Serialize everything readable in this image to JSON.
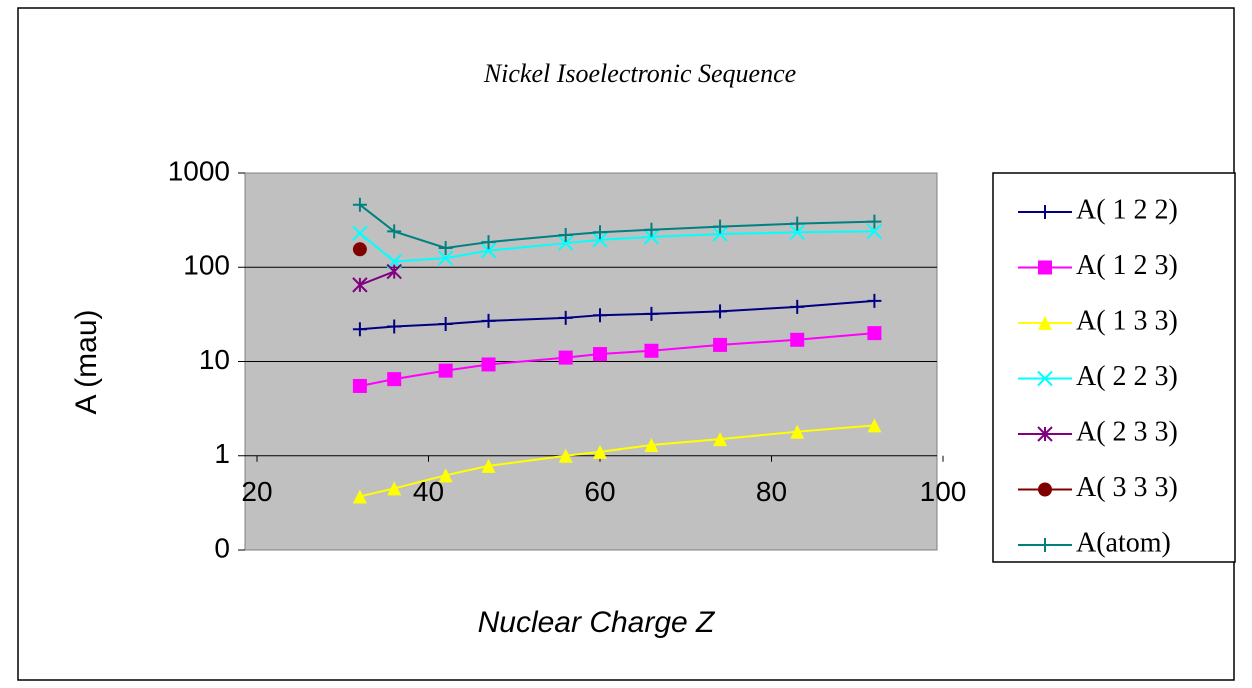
{
  "chart_data": {
    "type": "line",
    "title": "Nickel Isoelectronic Sequence",
    "x_label": "Nuclear Charge Z",
    "y_label": "A (mau)",
    "x": [
      32,
      36,
      42,
      47,
      56,
      60,
      66,
      74,
      83,
      92
    ],
    "series": [
      {
        "name": "A( 1 2 2)",
        "color": "#000080",
        "marker": "plus",
        "values": [
          22,
          23.5,
          25,
          27,
          29,
          31,
          32,
          34,
          38,
          44
        ]
      },
      {
        "name": "A( 1 2 3)",
        "color": "#ff00ff",
        "marker": "square",
        "values": [
          5.5,
          6.5,
          8,
          9.3,
          11,
          12,
          13,
          15,
          17,
          20
        ]
      },
      {
        "name": "A( 1 3 3)",
        "color": "#ffff00",
        "marker": "triangle",
        "values": [
          0.37,
          0.45,
          0.62,
          0.78,
          1.0,
          1.1,
          1.3,
          1.5,
          1.8,
          2.1
        ]
      },
      {
        "name": "A( 2 2 3)",
        "color": "#00ffff",
        "marker": "x",
        "values": [
          230,
          115,
          125,
          150,
          180,
          195,
          210,
          225,
          235,
          240
        ]
      },
      {
        "name": "A( 2 3 3)",
        "color": "#800080",
        "marker": "asterisk",
        "values": [
          65,
          90,
          null,
          null,
          null,
          null,
          null,
          null,
          null,
          null
        ]
      },
      {
        "name": "A( 3 3 3)",
        "color": "#800000",
        "marker": "circle",
        "values": [
          155,
          null,
          null,
          null,
          null,
          null,
          null,
          null,
          null,
          null
        ]
      },
      {
        "name": "A(atom)",
        "color": "#008080",
        "marker": "plus",
        "values": [
          460,
          240,
          160,
          185,
          220,
          235,
          250,
          270,
          290,
          305
        ]
      }
    ],
    "xlim": [
      20,
      100
    ],
    "xticks": [
      20,
      40,
      60,
      80,
      100
    ],
    "ylim": [
      0.1,
      1000
    ],
    "yscale": "log",
    "yticks": [
      {
        "value": 0.1,
        "label": "0"
      },
      1,
      10,
      100,
      1000
    ],
    "grid": true,
    "legend": "right"
  }
}
